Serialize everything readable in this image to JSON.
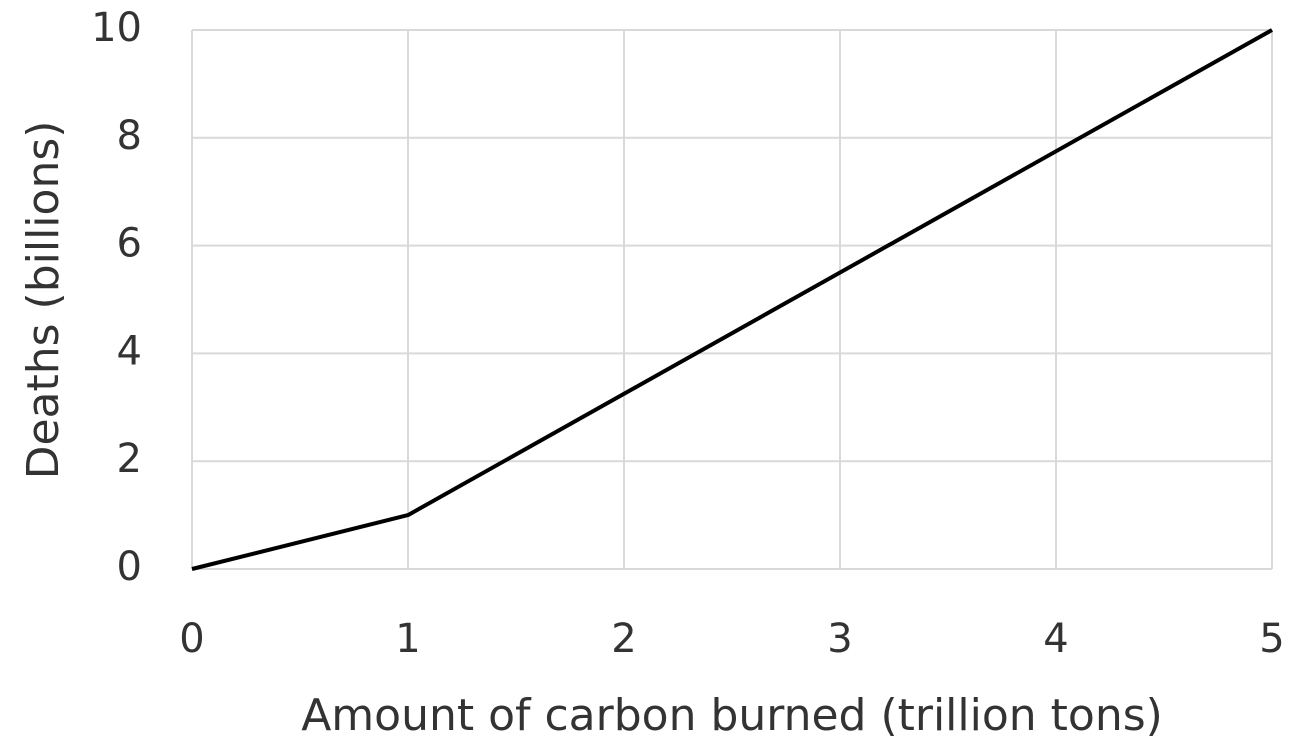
{
  "chart_data": {
    "type": "line",
    "x_label": "Amount of carbon burned (trillion tons)",
    "y_label": "Deaths (billions)",
    "x": [
      0,
      1,
      5
    ],
    "values": [
      0,
      1,
      10
    ],
    "color": "#000000",
    "xlim": [
      0,
      5
    ],
    "xticks": [
      0,
      1,
      2,
      3,
      4,
      5
    ],
    "ylim": [
      0,
      10
    ],
    "yticks": [
      0,
      2,
      4,
      6,
      8,
      10
    ],
    "grid": true
  }
}
